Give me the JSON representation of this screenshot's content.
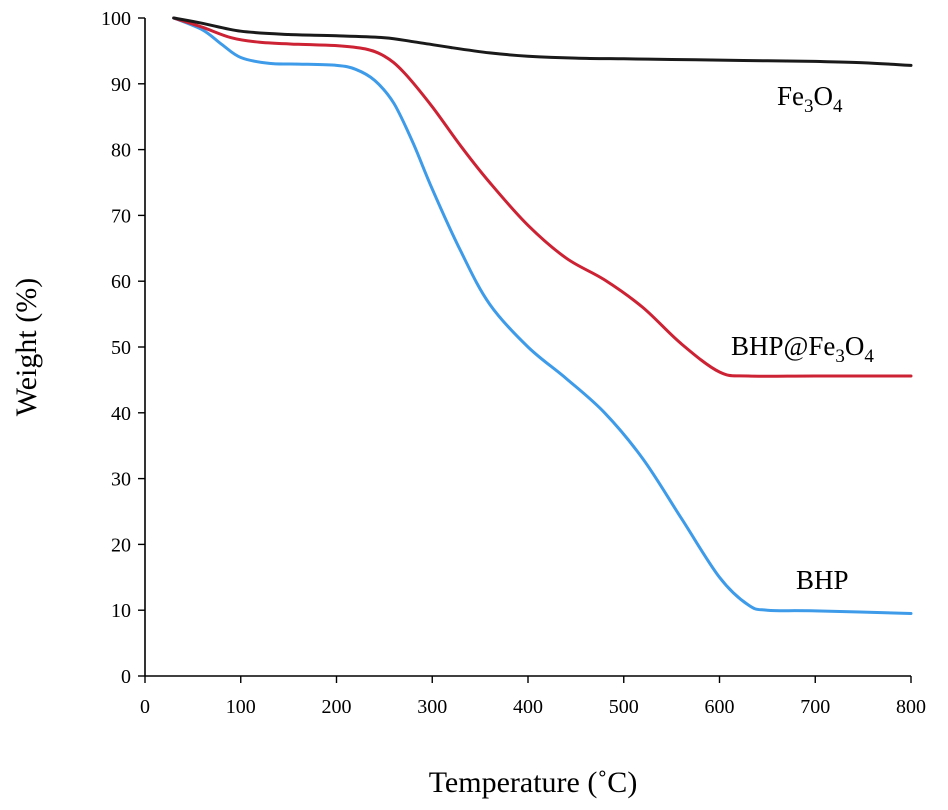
{
  "chart_data": {
    "type": "line",
    "xlabel": "Temperature (˚C)",
    "ylabel": "Weight (%)",
    "xlim": [
      0,
      800
    ],
    "ylim": [
      0,
      100
    ],
    "x_ticks": [
      0,
      100,
      200,
      300,
      400,
      500,
      600,
      700,
      800
    ],
    "y_ticks": [
      0,
      10,
      20,
      30,
      40,
      50,
      60,
      70,
      80,
      90,
      100
    ],
    "grid": false,
    "legend": "none; series labelled directly on the plot",
    "series": [
      {
        "name": "Fe3O4",
        "label_parts": [
          "Fe",
          "3",
          "O",
          "4"
        ],
        "color": "#1a1a1a",
        "x": [
          30,
          60,
          100,
          150,
          200,
          250,
          280,
          320,
          360,
          400,
          450,
          500,
          550,
          600,
          650,
          700,
          750,
          800
        ],
        "y": [
          100,
          99.2,
          98,
          97.5,
          97.3,
          97,
          96.4,
          95.5,
          94.7,
          94.2,
          93.9,
          93.8,
          93.7,
          93.6,
          93.5,
          93.4,
          93.2,
          92.8
        ]
      },
      {
        "name": "BHP@Fe3O4",
        "label_parts": [
          "BHP@Fe",
          "3",
          "O",
          "4"
        ],
        "color": "#cc2233",
        "x": [
          30,
          60,
          90,
          120,
          160,
          200,
          230,
          250,
          270,
          300,
          330,
          360,
          400,
          440,
          480,
          520,
          560,
          600,
          630,
          700,
          800
        ],
        "y": [
          100,
          98.6,
          97,
          96.3,
          96,
          95.8,
          95.3,
          94.2,
          91.8,
          86.5,
          80.5,
          75,
          68.5,
          63.5,
          60.2,
          56,
          50.5,
          46.2,
          45.6,
          45.6,
          45.6
        ]
      },
      {
        "name": "BHP",
        "label_parts": [
          "BHP"
        ],
        "color": "#3d9be9",
        "x": [
          30,
          60,
          80,
          100,
          130,
          160,
          200,
          220,
          240,
          260,
          280,
          300,
          330,
          360,
          400,
          440,
          480,
          520,
          560,
          600,
          630,
          650,
          700,
          800
        ],
        "y": [
          100,
          98.2,
          96,
          94,
          93.1,
          93,
          92.8,
          92.2,
          90.5,
          87,
          81,
          74,
          64.5,
          56.5,
          50,
          45.2,
          40,
          33,
          24,
          15,
          10.8,
          10,
          9.9,
          9.5
        ]
      }
    ]
  }
}
